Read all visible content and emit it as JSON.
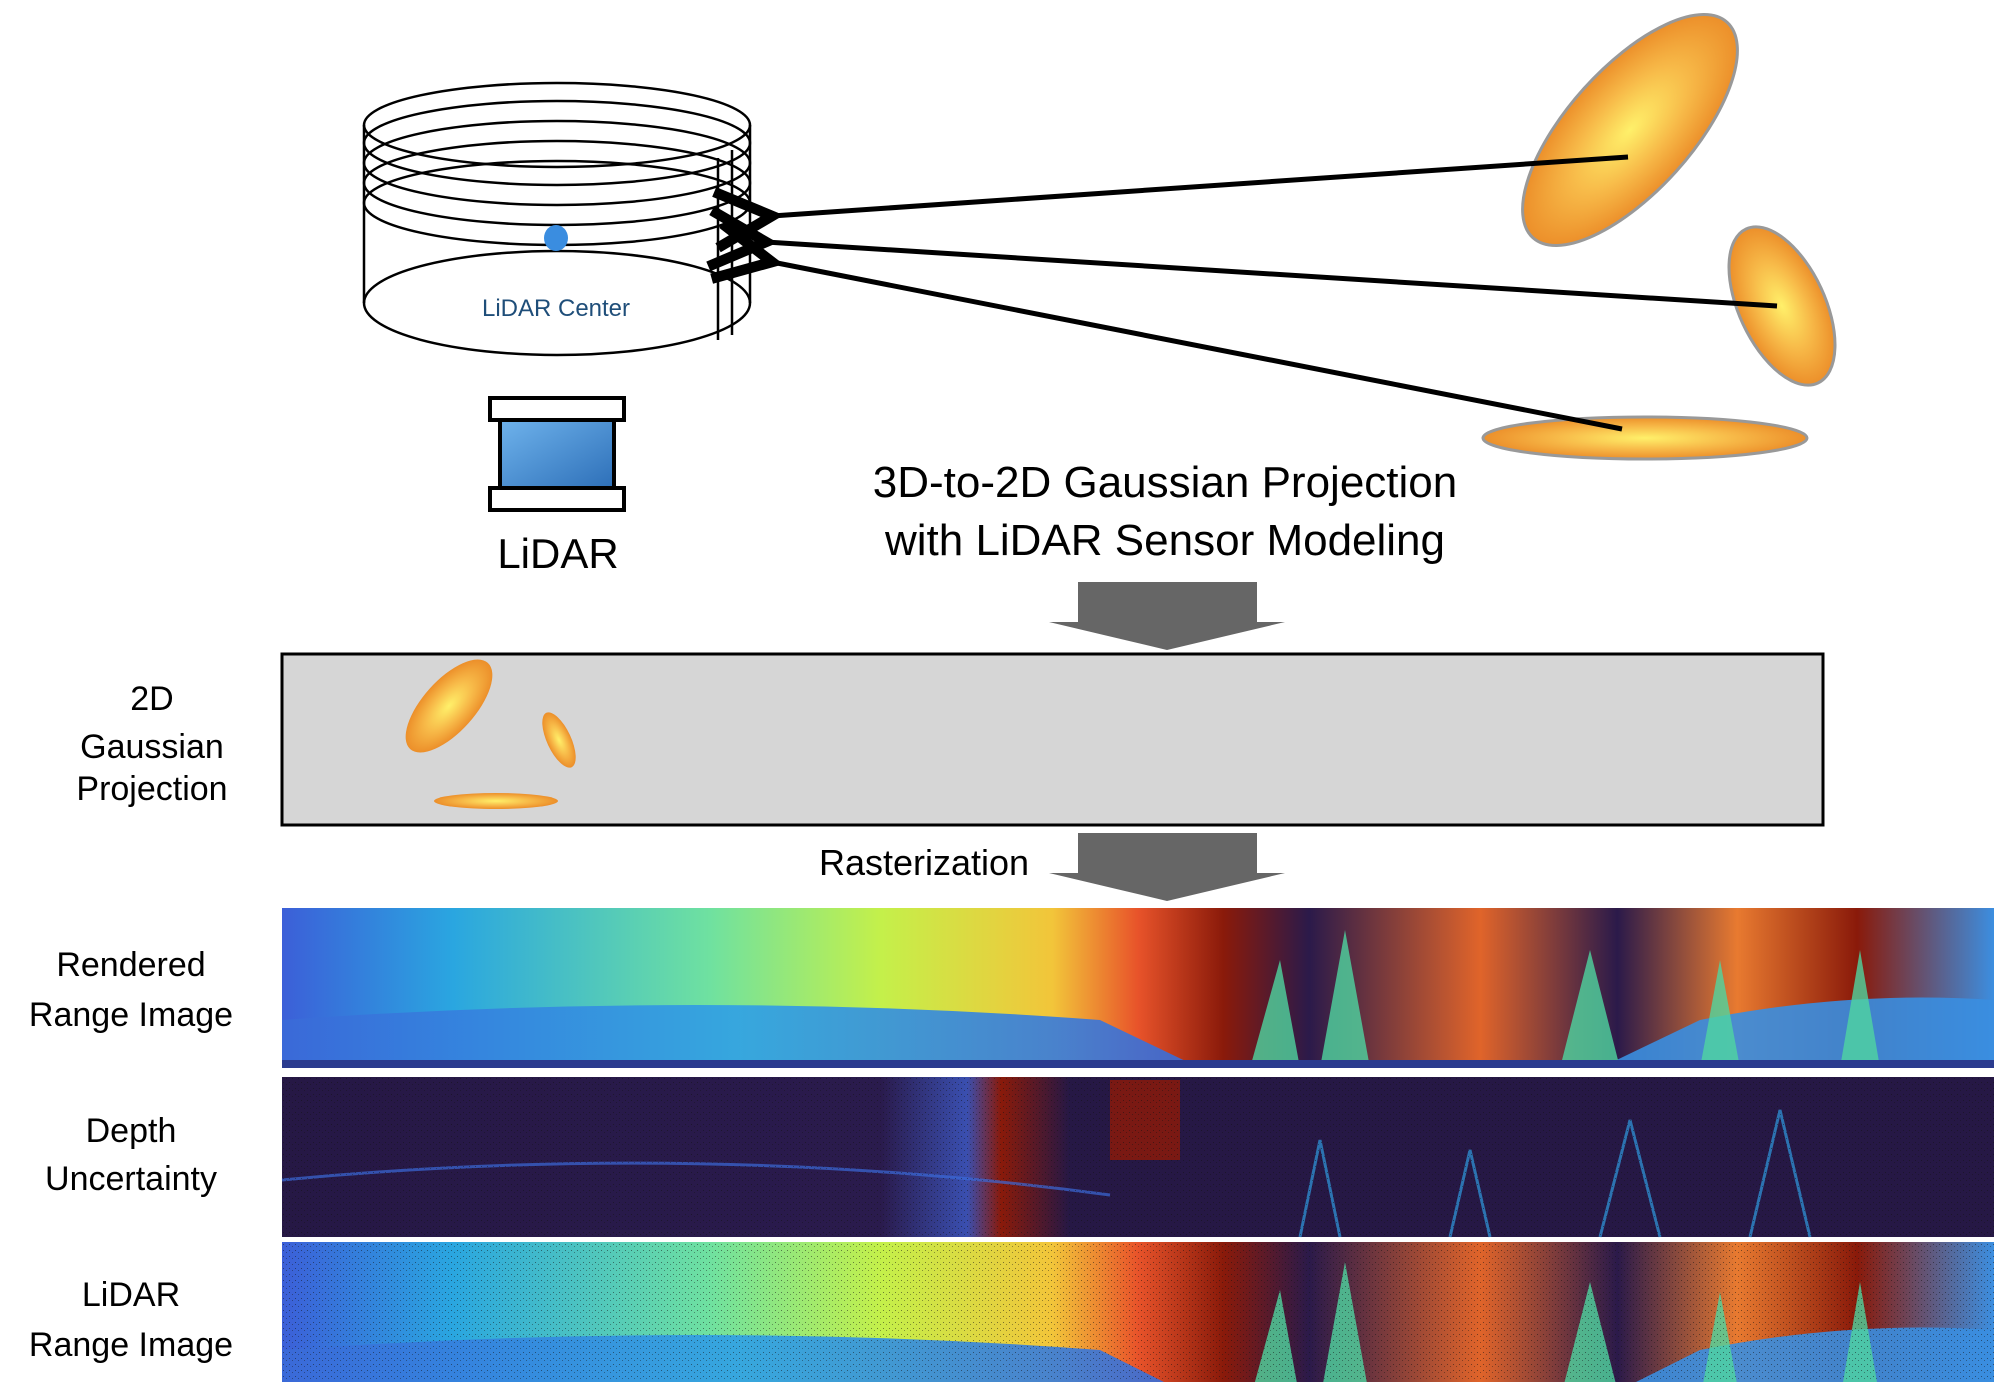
{
  "lidar_center_label": "LiDAR Center",
  "lidar_label": "LiDAR",
  "projection_title": {
    "line1": "3D-to-2D Gaussian Projection",
    "line2": "with LiDAR Sensor Modeling"
  },
  "projection_row_label": [
    "2D",
    "Gaussian",
    "Projection"
  ],
  "rasterization_label": "Rasterization",
  "rendered_label": [
    "Rendered",
    "Range Image"
  ],
  "uncertainty_label": [
    "Depth",
    "Uncertainty"
  ],
  "lidar_range_label": [
    "LiDAR",
    "Range Image"
  ],
  "colors": {
    "lidar_center_dot": "#3a8de0",
    "lidar_center_text": "#1f4e79",
    "sensor_blue": "#3f86d0",
    "gaussian_orange": "#f2a33a",
    "gaussian_yellow": "#ffe46a",
    "projection_panel": "#d6d6d6",
    "arrow_gray": "#666666",
    "range_dark": "#2b1a4a",
    "range_red": "#8a1a0a"
  }
}
